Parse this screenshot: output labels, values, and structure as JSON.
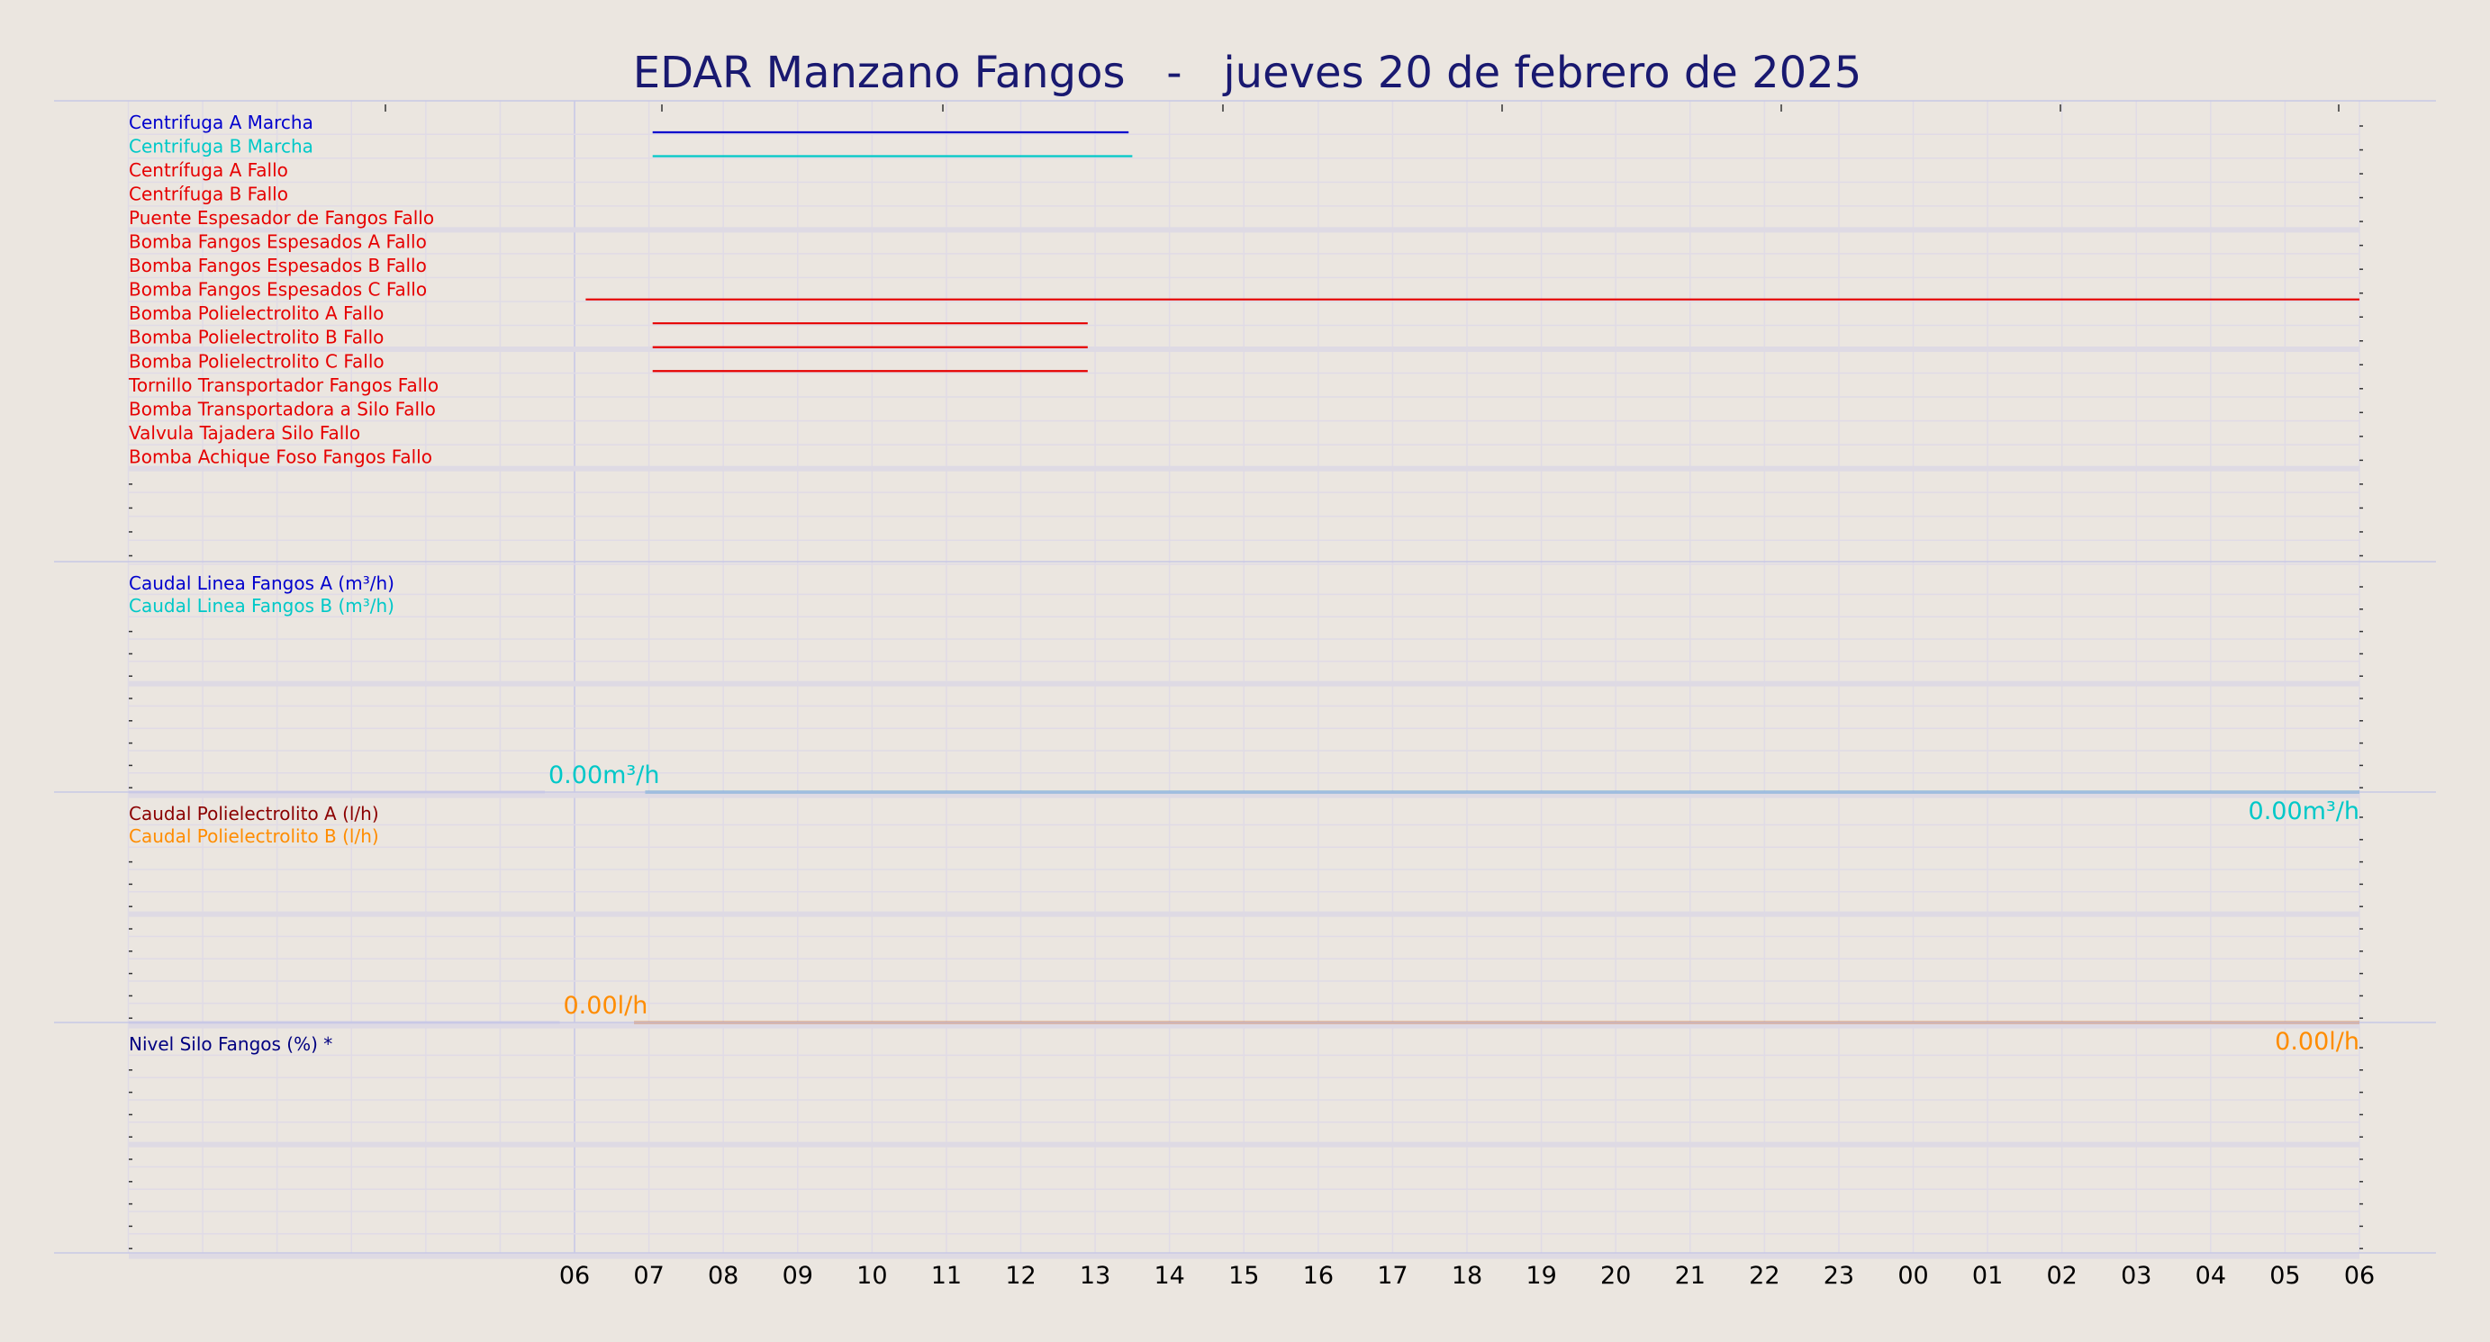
{
  "chart_data": {
    "type": "line",
    "title": "EDAR Manzano Fangos   -   jueves 20 de febrero de 2025",
    "colors": {
      "background": "#ebe6e0",
      "title": "#191970",
      "grid": "#e0dbe6",
      "separator": "#c8c8e6",
      "marcha_a": "#0000cd",
      "marcha_b": "#00c8c8",
      "fallo": "#e60000",
      "caudal_a": "#0000cd",
      "caudal_b": "#00c8c8",
      "poli_a": "#8b0000",
      "poli_b": "#ff8c00",
      "nivel": "#000080"
    },
    "x_axis": {
      "start_hour": 6,
      "end_hour": 30,
      "tick_labels": [
        "06",
        "07",
        "08",
        "09",
        "10",
        "11",
        "12",
        "13",
        "14",
        "15",
        "16",
        "17",
        "18",
        "19",
        "20",
        "21",
        "22",
        "23",
        "00",
        "01",
        "02",
        "03",
        "04",
        "05",
        "06"
      ]
    },
    "panels": [
      {
        "id": "digital",
        "rows": 19,
        "series": [
          {
            "label": "Centrifuga A Marcha",
            "color": "#0000cd",
            "on_intervals": [
              [
                7.05,
                13.45
              ]
            ]
          },
          {
            "label": "Centrifuga B Marcha",
            "color": "#00c8c8",
            "on_intervals": [
              [
                7.05,
                13.5
              ]
            ]
          },
          {
            "label": "Centrífuga A Fallo",
            "color": "#e60000",
            "on_intervals": []
          },
          {
            "label": "Centrífuga B Fallo",
            "color": "#e60000",
            "on_intervals": []
          },
          {
            "label": "Puente Espesador de Fangos Fallo",
            "color": "#e60000",
            "on_intervals": []
          },
          {
            "label": "Bomba Fangos Espesados A Fallo",
            "color": "#e60000",
            "on_intervals": []
          },
          {
            "label": "Bomba Fangos Espesados B Fallo",
            "color": "#e60000",
            "on_intervals": []
          },
          {
            "label": "Bomba Fangos Espesados C Fallo",
            "color": "#e60000",
            "on_intervals": [
              [
                6.15,
                30
              ]
            ]
          },
          {
            "label": "Bomba Polielectrolito A Fallo",
            "color": "#e60000",
            "on_intervals": [
              [
                7.05,
                12.9
              ]
            ]
          },
          {
            "label": "Bomba Polielectrolito B Fallo",
            "color": "#e60000",
            "on_intervals": [
              [
                7.05,
                12.9
              ]
            ]
          },
          {
            "label": "Bomba Polielectrolito C Fallo",
            "color": "#e60000",
            "on_intervals": [
              [
                7.05,
                12.9
              ]
            ]
          },
          {
            "label": "Tornillo Transportador Fangos Fallo",
            "color": "#e60000",
            "on_intervals": []
          },
          {
            "label": "Bomba Transportadora a Silo Fallo",
            "color": "#e60000",
            "on_intervals": []
          },
          {
            "label": "Valvula Tajadera Silo Fallo",
            "color": "#e60000",
            "on_intervals": []
          },
          {
            "label": "Bomba Achique Foso Fangos Fallo",
            "color": "#e60000",
            "on_intervals": []
          }
        ]
      },
      {
        "id": "caudal-lineas",
        "rows": 10,
        "series": [
          {
            "label": "Caudal Linea Fangos A (m³/h)",
            "color": "#0000cd",
            "points": [
              [
                0.0,
                0
              ],
              [
                5.6,
                0
              ],
              [
                6.95,
                0
              ],
              [
                30,
                0
              ]
            ]
          },
          {
            "label": "Caudal Linea Fangos B (m³/h)",
            "color": "#00c8c8",
            "points": [
              [
                0.0,
                0
              ],
              [
                5.6,
                0
              ],
              [
                6.95,
                0
              ],
              [
                30,
                0
              ]
            ]
          }
        ],
        "start_label": "0.00m³/h",
        "end_label": "0.00m³/h"
      },
      {
        "id": "caudal-poli",
        "rows": 10,
        "series": [
          {
            "label": "Caudal Polielectrolito A (l/h)",
            "color": "#8b0000",
            "points": [
              [
                0.0,
                0
              ],
              [
                5.8,
                0
              ],
              [
                6.8,
                0
              ],
              [
                30,
                0
              ]
            ]
          },
          {
            "label": "Caudal Polielectrolito B (l/h)",
            "color": "#ff8c00",
            "points": [
              [
                0.0,
                0
              ],
              [
                5.8,
                0
              ],
              [
                6.8,
                0
              ],
              [
                30,
                0
              ]
            ]
          }
        ],
        "start_label": "0.00l/h",
        "end_label": "0.00l/h"
      },
      {
        "id": "nivel",
        "rows": 10,
        "series": [
          {
            "label": "Nivel Silo Fangos (%) *",
            "color": "#000080",
            "points": []
          }
        ]
      }
    ]
  }
}
